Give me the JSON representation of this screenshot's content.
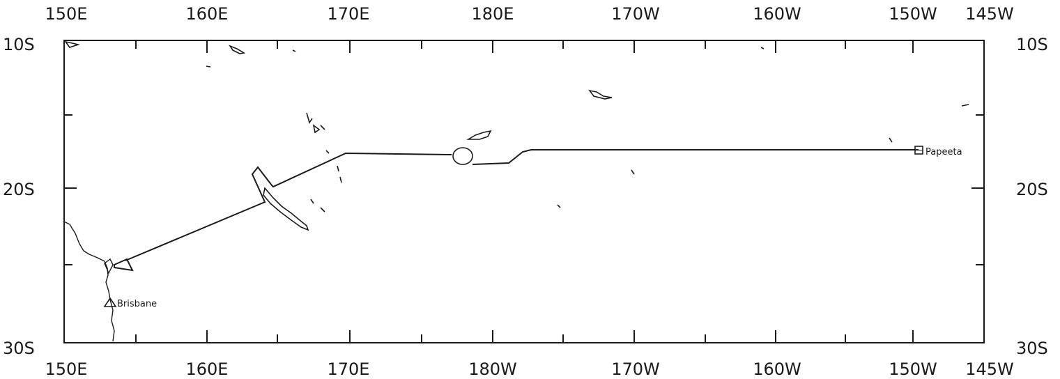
{
  "map": {
    "top_axis_labels": [
      "150E",
      "160E",
      "170E",
      "180E",
      "170W",
      "160W",
      "150W",
      "145W"
    ],
    "bottom_axis_labels": [
      "150E",
      "160E",
      "170E",
      "180W",
      "170W",
      "160W",
      "150W",
      "145W"
    ],
    "left_axis_labels": [
      "10S",
      "20S",
      "30S"
    ],
    "right_axis_labels": [
      "10S",
      "20S",
      "30S"
    ],
    "places": {
      "brisbane": "Brisbane",
      "papeete": "Papeeta"
    },
    "markers": {
      "brisbane": "triangle-marker",
      "papeete": "square-marker"
    }
  }
}
